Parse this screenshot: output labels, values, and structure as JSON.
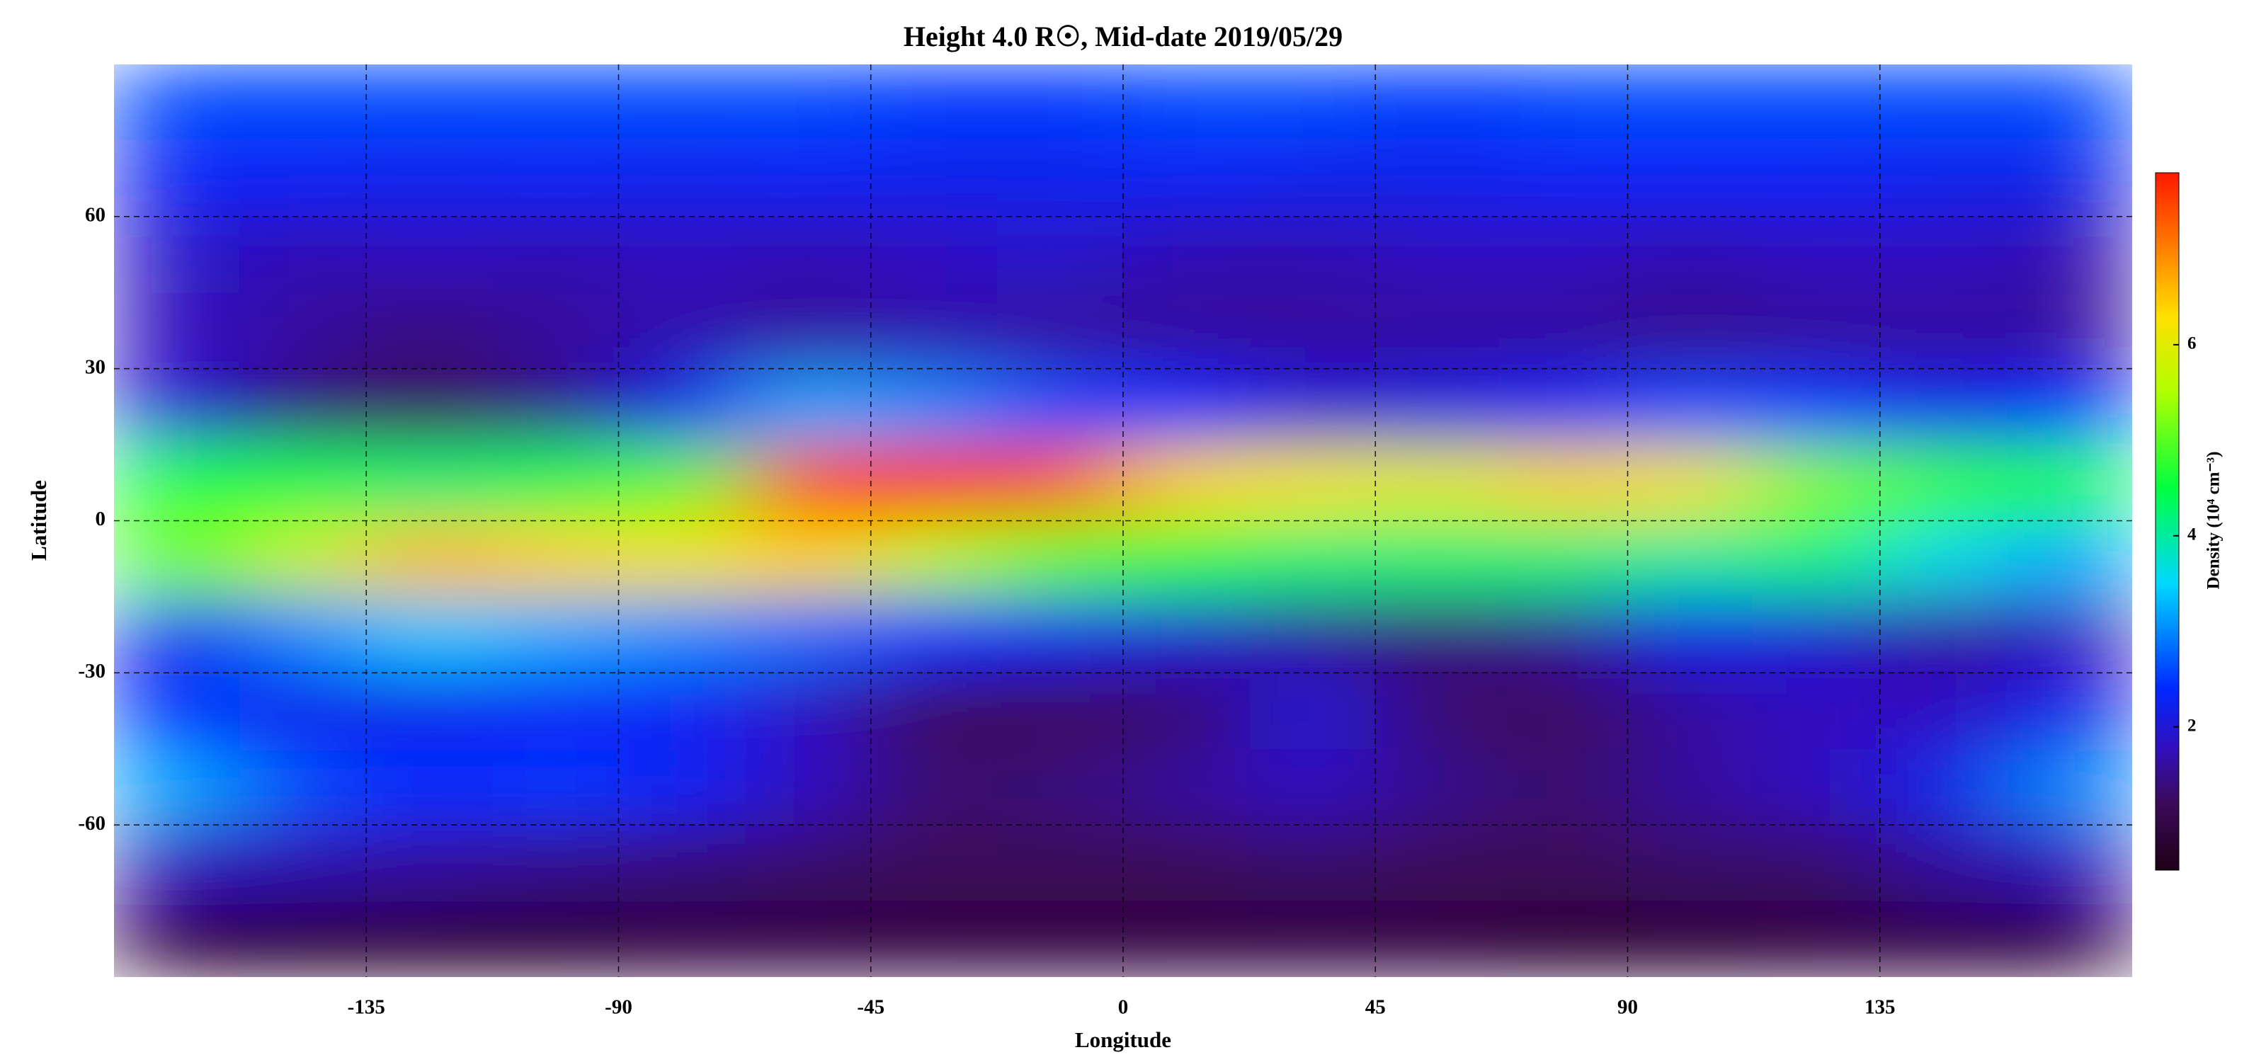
{
  "chart_data": {
    "type": "heatmap",
    "title": "Height 4.0 R☉, Mid-date 2019/05/29",
    "x_label": "Longitude",
    "y_label": "Latitude",
    "colorbar_label": "Density (10⁴ cm⁻³)",
    "xlim": [
      -180,
      180
    ],
    "ylim": [
      -90,
      90
    ],
    "xticks": [
      -135,
      -90,
      -45,
      0,
      45,
      90,
      135
    ],
    "yticks": [
      -60,
      -30,
      0,
      30,
      60
    ],
    "grid": true,
    "clim": [
      0.5,
      7.8
    ],
    "cticks": [
      2,
      4,
      6
    ],
    "colorscale": [
      [
        0.5,
        "#1e0016"
      ],
      [
        1.2,
        "#3c0a5a"
      ],
      [
        1.8,
        "#3010c0"
      ],
      [
        2.4,
        "#0028ff"
      ],
      [
        3.5,
        "#00d8ff"
      ],
      [
        4.5,
        "#00ff40"
      ],
      [
        5.5,
        "#b0ff00"
      ],
      [
        6.3,
        "#ffe000"
      ],
      [
        7.0,
        "#ff8000"
      ],
      [
        7.8,
        "#ff1800"
      ]
    ],
    "x": [
      -168.75,
      -146.25,
      -123.75,
      -101.25,
      -78.75,
      -56.25,
      -33.75,
      -11.25,
      11.25,
      33.75,
      56.25,
      78.75,
      101.25,
      123.75,
      146.25,
      168.75
    ],
    "y": [
      82.5,
      67.5,
      52.5,
      37.5,
      22.5,
      7.5,
      -7.5,
      -22.5,
      -37.5,
      -52.5,
      -67.5,
      -82.5
    ],
    "values": [
      [
        2.6,
        2.6,
        2.6,
        2.6,
        2.6,
        2.6,
        2.5,
        2.5,
        2.6,
        2.6,
        2.5,
        2.6,
        2.6,
        2.6,
        2.6,
        2.6
      ],
      [
        2.3,
        2.3,
        2.2,
        2.3,
        2.2,
        2.3,
        2.2,
        2.2,
        2.3,
        2.2,
        2.2,
        2.3,
        2.3,
        2.3,
        2.2,
        2.2
      ],
      [
        1.9,
        1.7,
        1.8,
        1.7,
        1.8,
        1.7,
        1.8,
        1.9,
        1.7,
        1.7,
        1.8,
        1.8,
        1.7,
        1.8,
        1.8,
        1.7
      ],
      [
        1.8,
        1.6,
        1.4,
        1.6,
        1.7,
        1.6,
        1.7,
        1.6,
        1.6,
        1.6,
        1.6,
        1.6,
        1.5,
        1.6,
        1.6,
        1.6
      ],
      [
        2.0,
        1.4,
        1.2,
        1.5,
        2.2,
        3.2,
        3.0,
        2.6,
        2.4,
        2.0,
        2.1,
        2.3,
        2.6,
        2.5,
        2.2,
        2.4
      ],
      [
        4.6,
        4.4,
        4.2,
        4.4,
        5.0,
        7.6,
        7.8,
        7.4,
        6.4,
        6.2,
        6.0,
        6.4,
        6.2,
        5.2,
        4.8,
        4.6
      ],
      [
        5.0,
        5.8,
        6.6,
        6.4,
        6.2,
        6.4,
        5.6,
        5.0,
        4.6,
        4.2,
        4.2,
        4.2,
        4.0,
        4.2,
        3.6,
        3.2
      ],
      [
        2.2,
        3.0,
        3.4,
        3.2,
        3.0,
        2.8,
        2.4,
        2.2,
        2.0,
        1.6,
        1.4,
        1.6,
        2.2,
        2.0,
        1.6,
        1.8
      ],
      [
        2.4,
        2.2,
        2.2,
        2.3,
        2.3,
        1.8,
        1.2,
        1.2,
        1.3,
        2.0,
        1.3,
        1.2,
        1.6,
        1.8,
        1.8,
        2.2
      ],
      [
        3.2,
        2.6,
        2.4,
        2.5,
        2.3,
        1.8,
        1.3,
        1.4,
        1.6,
        1.8,
        1.5,
        1.3,
        1.6,
        1.8,
        2.2,
        3.0
      ],
      [
        1.8,
        1.7,
        1.6,
        1.5,
        1.4,
        1.3,
        1.2,
        1.2,
        1.2,
        1.3,
        1.2,
        1.2,
        1.3,
        1.3,
        1.6,
        1.8
      ],
      [
        0.9,
        0.8,
        0.8,
        0.8,
        0.9,
        0.9,
        0.9,
        0.9,
        0.9,
        0.9,
        0.9,
        0.8,
        0.8,
        0.9,
        0.9,
        0.9
      ]
    ]
  }
}
